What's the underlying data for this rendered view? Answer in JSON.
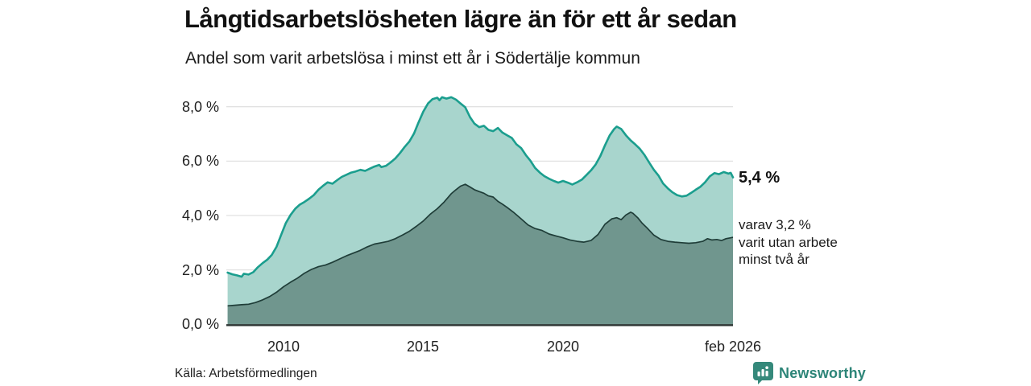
{
  "header": {
    "title": "Långtidsarbetslösheten lägre än för ett år sedan",
    "subtitle": "Andel som varit arbetslösa i minst ett år i Södertälje kommun"
  },
  "annotations": {
    "end_value_label": "5,4 %",
    "secondary_line1": "varav 3,2 %",
    "secondary_line2": "varit utan arbete",
    "secondary_line3": "minst två år"
  },
  "footer": {
    "source": "Källa: Arbetsförmedlingen",
    "brand": "Newsworthy"
  },
  "colors": {
    "line_total": "#1b9e8e",
    "fill_total": "#a8d5cd",
    "line_two_years": "#1f3d38",
    "fill_two_years": "#70968e",
    "grid": "#e1e1e1",
    "baseline": "#2b3331",
    "brand_teal": "#2e8577",
    "text": "#1a1a1a"
  },
  "chart_data": {
    "type": "area",
    "title": "Långtidsarbetslösheten lägre än för ett år sedan",
    "subtitle": "Andel som varit arbetslösa i minst ett år i Södertälje kommun",
    "x_unit": "year",
    "y_unit": "percent",
    "xlim": [
      2008.0,
      2026.08
    ],
    "ylim": [
      0,
      8
    ],
    "grid": "horizontal",
    "legend": "none",
    "y_ticks": [
      {
        "label": "0,0 %",
        "value": 0
      },
      {
        "label": "2,0 %",
        "value": 2
      },
      {
        "label": "4,0 %",
        "value": 4
      },
      {
        "label": "6,0 %",
        "value": 6
      },
      {
        "label": "8,0 %",
        "value": 8
      }
    ],
    "x_ticks": [
      {
        "label": "2010",
        "value": 2010
      },
      {
        "label": "2015",
        "value": 2015
      },
      {
        "label": "2020",
        "value": 2020
      },
      {
        "label": "feb 2026",
        "value": 2026.0
      }
    ],
    "end_values": {
      "total": 5.4,
      "two_years": 3.2
    },
    "series": [
      {
        "name": "Arbetslösa minst ett år",
        "points": [
          [
            2008.0,
            1.9
          ],
          [
            2008.17,
            1.84
          ],
          [
            2008.33,
            1.8
          ],
          [
            2008.5,
            1.75
          ],
          [
            2008.58,
            1.86
          ],
          [
            2008.75,
            1.83
          ],
          [
            2008.92,
            1.92
          ],
          [
            2009.08,
            2.1
          ],
          [
            2009.25,
            2.25
          ],
          [
            2009.42,
            2.38
          ],
          [
            2009.58,
            2.55
          ],
          [
            2009.75,
            2.85
          ],
          [
            2009.92,
            3.3
          ],
          [
            2010.08,
            3.72
          ],
          [
            2010.25,
            4.02
          ],
          [
            2010.42,
            4.25
          ],
          [
            2010.58,
            4.4
          ],
          [
            2010.75,
            4.5
          ],
          [
            2010.92,
            4.62
          ],
          [
            2011.08,
            4.75
          ],
          [
            2011.25,
            4.95
          ],
          [
            2011.42,
            5.1
          ],
          [
            2011.58,
            5.22
          ],
          [
            2011.75,
            5.17
          ],
          [
            2011.92,
            5.3
          ],
          [
            2012.08,
            5.42
          ],
          [
            2012.25,
            5.5
          ],
          [
            2012.42,
            5.58
          ],
          [
            2012.58,
            5.62
          ],
          [
            2012.75,
            5.68
          ],
          [
            2012.92,
            5.64
          ],
          [
            2013.08,
            5.72
          ],
          [
            2013.25,
            5.8
          ],
          [
            2013.42,
            5.86
          ],
          [
            2013.5,
            5.78
          ],
          [
            2013.67,
            5.83
          ],
          [
            2013.83,
            5.95
          ],
          [
            2014.0,
            6.1
          ],
          [
            2014.17,
            6.3
          ],
          [
            2014.33,
            6.52
          ],
          [
            2014.5,
            6.72
          ],
          [
            2014.67,
            7.02
          ],
          [
            2014.83,
            7.42
          ],
          [
            2015.0,
            7.82
          ],
          [
            2015.17,
            8.12
          ],
          [
            2015.33,
            8.28
          ],
          [
            2015.5,
            8.33
          ],
          [
            2015.58,
            8.24
          ],
          [
            2015.67,
            8.35
          ],
          [
            2015.83,
            8.3
          ],
          [
            2016.0,
            8.35
          ],
          [
            2016.17,
            8.26
          ],
          [
            2016.33,
            8.12
          ],
          [
            2016.5,
            7.98
          ],
          [
            2016.67,
            7.62
          ],
          [
            2016.83,
            7.38
          ],
          [
            2017.0,
            7.25
          ],
          [
            2017.17,
            7.3
          ],
          [
            2017.33,
            7.15
          ],
          [
            2017.5,
            7.1
          ],
          [
            2017.67,
            7.22
          ],
          [
            2017.83,
            7.05
          ],
          [
            2018.0,
            6.95
          ],
          [
            2018.17,
            6.85
          ],
          [
            2018.33,
            6.62
          ],
          [
            2018.5,
            6.48
          ],
          [
            2018.67,
            6.22
          ],
          [
            2018.83,
            6.02
          ],
          [
            2019.0,
            5.75
          ],
          [
            2019.17,
            5.58
          ],
          [
            2019.33,
            5.45
          ],
          [
            2019.5,
            5.35
          ],
          [
            2019.67,
            5.27
          ],
          [
            2019.83,
            5.21
          ],
          [
            2020.0,
            5.27
          ],
          [
            2020.17,
            5.21
          ],
          [
            2020.33,
            5.14
          ],
          [
            2020.5,
            5.22
          ],
          [
            2020.67,
            5.32
          ],
          [
            2020.83,
            5.48
          ],
          [
            2021.0,
            5.66
          ],
          [
            2021.17,
            5.88
          ],
          [
            2021.33,
            6.18
          ],
          [
            2021.5,
            6.58
          ],
          [
            2021.67,
            6.95
          ],
          [
            2021.83,
            7.18
          ],
          [
            2021.92,
            7.27
          ],
          [
            2022.08,
            7.18
          ],
          [
            2022.25,
            6.95
          ],
          [
            2022.42,
            6.76
          ],
          [
            2022.58,
            6.62
          ],
          [
            2022.75,
            6.45
          ],
          [
            2022.92,
            6.22
          ],
          [
            2023.08,
            5.95
          ],
          [
            2023.25,
            5.68
          ],
          [
            2023.42,
            5.46
          ],
          [
            2023.58,
            5.18
          ],
          [
            2023.75,
            5.0
          ],
          [
            2023.92,
            4.85
          ],
          [
            2024.08,
            4.75
          ],
          [
            2024.25,
            4.7
          ],
          [
            2024.42,
            4.73
          ],
          [
            2024.58,
            4.83
          ],
          [
            2024.75,
            4.95
          ],
          [
            2024.92,
            5.06
          ],
          [
            2025.08,
            5.22
          ],
          [
            2025.25,
            5.44
          ],
          [
            2025.42,
            5.56
          ],
          [
            2025.58,
            5.52
          ],
          [
            2025.75,
            5.6
          ],
          [
            2025.92,
            5.54
          ],
          [
            2026.0,
            5.57
          ],
          [
            2026.08,
            5.4
          ]
        ]
      },
      {
        "name": "Arbetslösa minst två år",
        "points": [
          [
            2008.0,
            0.68
          ],
          [
            2008.25,
            0.7
          ],
          [
            2008.5,
            0.72
          ],
          [
            2008.75,
            0.74
          ],
          [
            2009.0,
            0.8
          ],
          [
            2009.25,
            0.9
          ],
          [
            2009.5,
            1.02
          ],
          [
            2009.75,
            1.18
          ],
          [
            2010.0,
            1.38
          ],
          [
            2010.25,
            1.55
          ],
          [
            2010.5,
            1.7
          ],
          [
            2010.75,
            1.88
          ],
          [
            2011.0,
            2.02
          ],
          [
            2011.25,
            2.12
          ],
          [
            2011.5,
            2.18
          ],
          [
            2011.75,
            2.28
          ],
          [
            2012.0,
            2.4
          ],
          [
            2012.25,
            2.52
          ],
          [
            2012.5,
            2.62
          ],
          [
            2012.75,
            2.72
          ],
          [
            2013.0,
            2.85
          ],
          [
            2013.25,
            2.95
          ],
          [
            2013.5,
            3.0
          ],
          [
            2013.75,
            3.05
          ],
          [
            2014.0,
            3.15
          ],
          [
            2014.25,
            3.28
          ],
          [
            2014.5,
            3.42
          ],
          [
            2014.75,
            3.6
          ],
          [
            2015.0,
            3.8
          ],
          [
            2015.25,
            4.05
          ],
          [
            2015.5,
            4.25
          ],
          [
            2015.75,
            4.5
          ],
          [
            2016.0,
            4.8
          ],
          [
            2016.17,
            4.95
          ],
          [
            2016.33,
            5.08
          ],
          [
            2016.5,
            5.15
          ],
          [
            2016.67,
            5.05
          ],
          [
            2016.83,
            4.95
          ],
          [
            2017.0,
            4.88
          ],
          [
            2017.17,
            4.82
          ],
          [
            2017.33,
            4.72
          ],
          [
            2017.5,
            4.68
          ],
          [
            2017.67,
            4.52
          ],
          [
            2017.83,
            4.42
          ],
          [
            2018.0,
            4.3
          ],
          [
            2018.25,
            4.1
          ],
          [
            2018.5,
            3.88
          ],
          [
            2018.75,
            3.65
          ],
          [
            2019.0,
            3.52
          ],
          [
            2019.25,
            3.45
          ],
          [
            2019.5,
            3.32
          ],
          [
            2019.75,
            3.25
          ],
          [
            2020.0,
            3.18
          ],
          [
            2020.25,
            3.1
          ],
          [
            2020.5,
            3.05
          ],
          [
            2020.75,
            3.02
          ],
          [
            2021.0,
            3.08
          ],
          [
            2021.25,
            3.3
          ],
          [
            2021.5,
            3.68
          ],
          [
            2021.75,
            3.88
          ],
          [
            2021.92,
            3.92
          ],
          [
            2022.08,
            3.85
          ],
          [
            2022.25,
            4.02
          ],
          [
            2022.42,
            4.12
          ],
          [
            2022.5,
            4.08
          ],
          [
            2022.67,
            3.92
          ],
          [
            2022.83,
            3.72
          ],
          [
            2023.0,
            3.55
          ],
          [
            2023.25,
            3.28
          ],
          [
            2023.5,
            3.12
          ],
          [
            2023.75,
            3.05
          ],
          [
            2024.0,
            3.02
          ],
          [
            2024.25,
            3.0
          ],
          [
            2024.5,
            2.98
          ],
          [
            2024.75,
            3.0
          ],
          [
            2025.0,
            3.05
          ],
          [
            2025.17,
            3.15
          ],
          [
            2025.33,
            3.1
          ],
          [
            2025.5,
            3.12
          ],
          [
            2025.67,
            3.08
          ],
          [
            2025.83,
            3.15
          ],
          [
            2026.0,
            3.18
          ],
          [
            2026.08,
            3.2
          ]
        ]
      }
    ]
  }
}
